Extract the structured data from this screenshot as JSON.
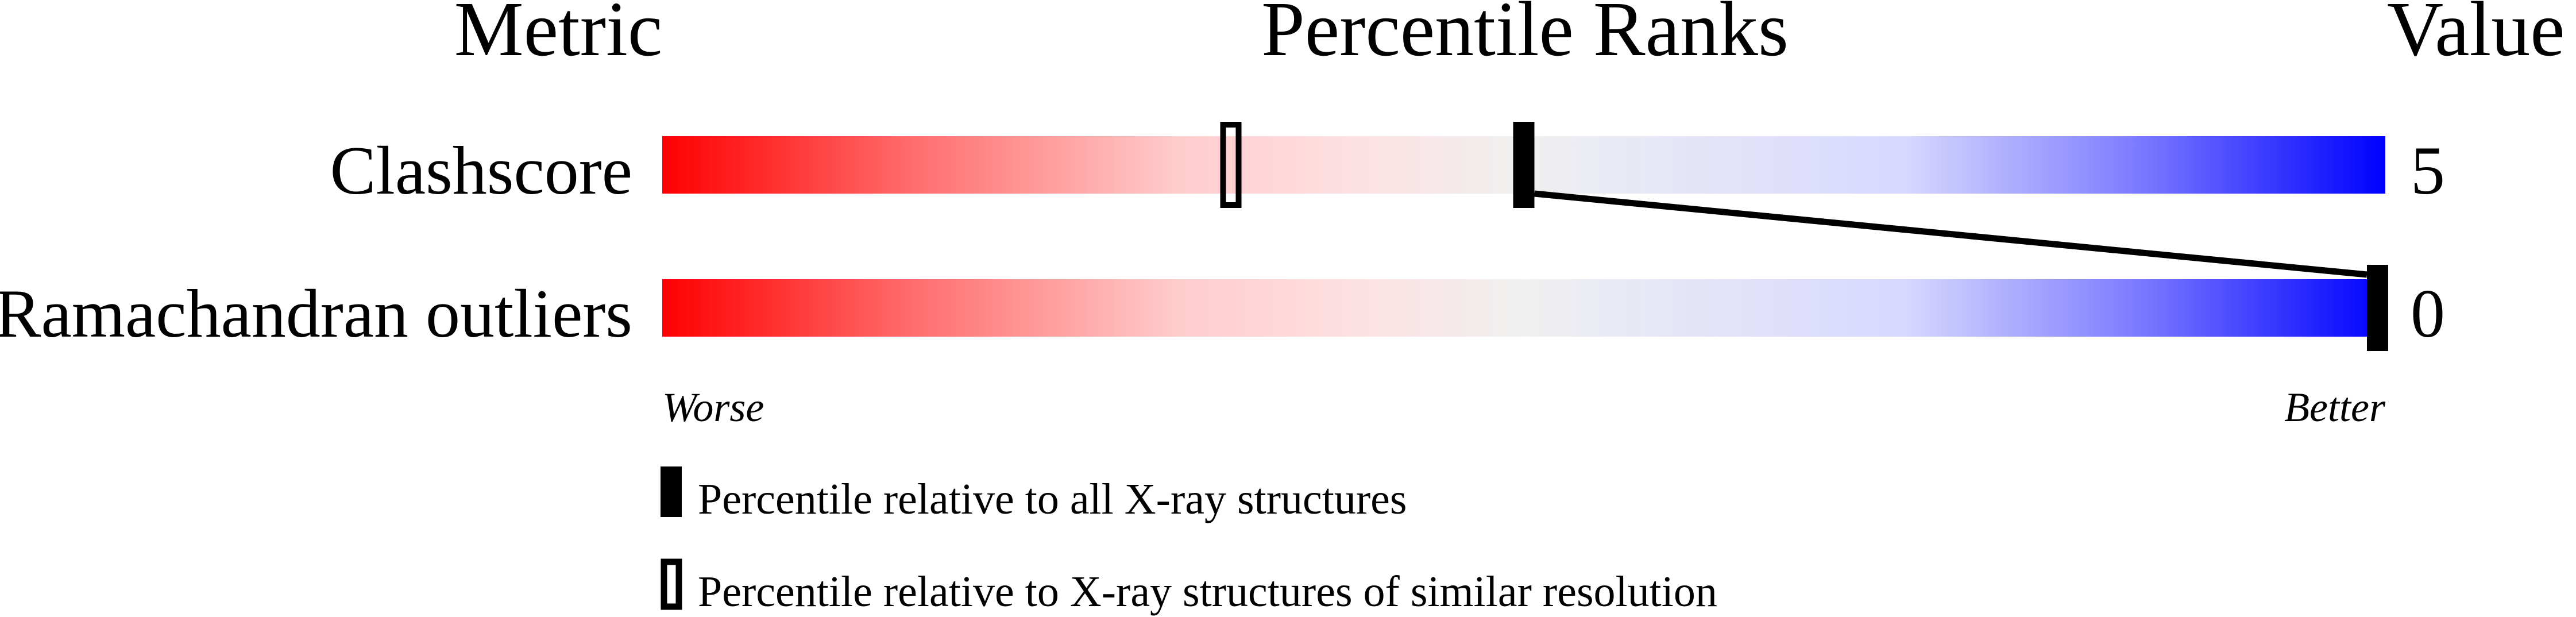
{
  "chart_data": {
    "type": "percentile-slider",
    "headers": {
      "metric": "Metric",
      "percentile": "Percentile Ranks",
      "value": "Value"
    },
    "metrics": [
      {
        "name": "Clashscore",
        "value": "5",
        "percentile_all": 50,
        "percentile_similar": 33
      },
      {
        "name": "Ramachandran outliers",
        "value": "0",
        "percentile_all": 100,
        "percentile_similar": null
      }
    ],
    "axis": {
      "worse_label": "Worse",
      "better_label": "Better",
      "range": [
        0,
        100
      ]
    },
    "legend": [
      {
        "marker": "filled",
        "label": "Percentile relative to all X-ray structures"
      },
      {
        "marker": "hollow",
        "label": "Percentile relative to X-ray structures of similar resolution"
      }
    ],
    "colors": {
      "worse": "#ff0000",
      "mid": "#f0f0f0",
      "better": "#0000ff",
      "marker": "#000000"
    }
  }
}
